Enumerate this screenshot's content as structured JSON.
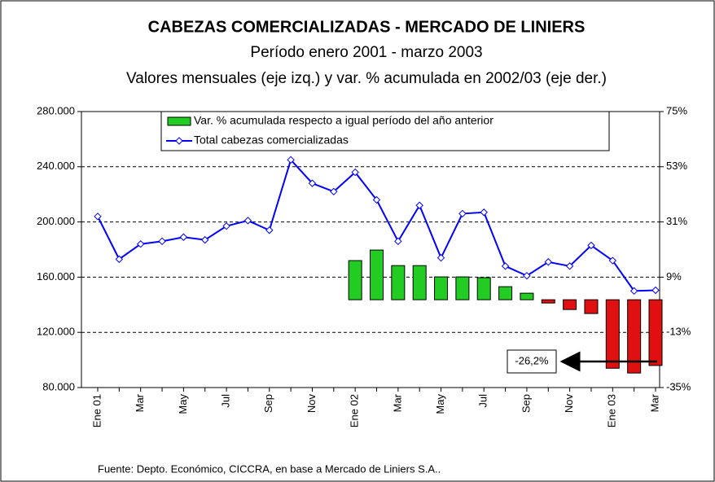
{
  "chart_data": {
    "type": "bar_line",
    "title": "CABEZAS COMERCIALIZADAS - MERCADO DE LINIERS",
    "subtitle": "Período enero 2001 - marzo 2003",
    "subtitle2": "Valores mensuales (eje izq.) y var. % acumulada en 2002/03 (eje der.)",
    "source": "Fuente: Depto. Económico, CICCRA, en base a Mercado de Liniers S.A..",
    "categories": [
      "Ene 01",
      null,
      "Mar",
      null,
      "May",
      null,
      "Jul",
      null,
      "Sep",
      null,
      "Nov",
      null,
      "Ene 02",
      null,
      "Mar",
      null,
      "May",
      null,
      "Jul",
      null,
      "Sep",
      null,
      "Nov",
      null,
      "Ene 03",
      null,
      "Mar"
    ],
    "series": [
      {
        "name": "Var. % acumulada respecto a igual período del año anterior",
        "type": "bar",
        "axis": "y2",
        "color": "#22cc22",
        "negative_color": "#e01010",
        "values": [
          null,
          null,
          null,
          null,
          null,
          null,
          null,
          null,
          null,
          null,
          null,
          null,
          15.6,
          19.8,
          13.6,
          13.6,
          9.1,
          9.1,
          8.8,
          5.2,
          2.6,
          -1.3,
          -3.9,
          -5.5,
          -27.3,
          -29.2,
          -26.2
        ]
      },
      {
        "name": "Total cabezas comercializadas",
        "type": "line",
        "axis": "y",
        "color": "#0000ff",
        "values": [
          204000,
          173000,
          184000,
          186000,
          189000,
          187000,
          197000,
          201000,
          194000,
          245000,
          228000,
          222000,
          236000,
          216000,
          186000,
          212000,
          174000,
          206000,
          207000,
          168000,
          161000,
          171000,
          168000,
          183000,
          172000,
          150000,
          150500
        ]
      }
    ],
    "annotation": {
      "text": "-26,2%",
      "index": 26
    },
    "ylim": [
      80000,
      280000
    ],
    "yticks": [
      {
        "value": 80000,
        "label": "80.000"
      },
      {
        "value": 120000,
        "label": "120.000"
      },
      {
        "value": 160000,
        "label": "160.000"
      },
      {
        "value": 200000,
        "label": "200.000"
      },
      {
        "value": 240000,
        "label": "240.000"
      },
      {
        "value": 280000,
        "label": "280.000"
      }
    ],
    "y2lim": [
      -35,
      75
    ],
    "y2ticks": [
      {
        "value": -35,
        "label": "-35%"
      },
      {
        "value": -13,
        "label": "-13%"
      },
      {
        "value": 9,
        "label": "9%"
      },
      {
        "value": 31,
        "label": "31%"
      },
      {
        "value": 53,
        "label": "53%"
      },
      {
        "value": 75,
        "label": "75%"
      }
    ],
    "grid": true
  }
}
